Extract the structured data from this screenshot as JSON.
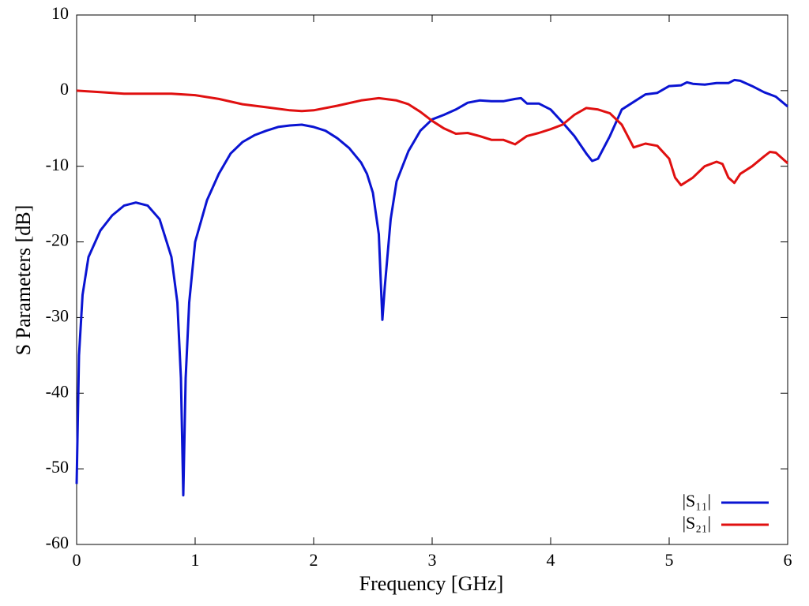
{
  "chart_data": {
    "type": "line",
    "xlabel": "Frequency [GHz]",
    "ylabel": "S Parameters [dB]",
    "xlim": [
      0,
      6
    ],
    "xticks": [
      0,
      1,
      2,
      3,
      4,
      5,
      6
    ],
    "ylim": [
      -60,
      10
    ],
    "yticks": [
      -60,
      -50,
      -40,
      -30,
      -20,
      -10,
      0,
      10
    ],
    "legend": "lower right",
    "series": [
      {
        "name": "|S₁₁|",
        "color": "#0a14d2",
        "x": [
          0,
          0.02,
          0.05,
          0.1,
          0.2,
          0.3,
          0.4,
          0.5,
          0.6,
          0.7,
          0.8,
          0.85,
          0.88,
          0.9,
          0.92,
          0.95,
          1.0,
          1.1,
          1.2,
          1.3,
          1.4,
          1.5,
          1.6,
          1.7,
          1.8,
          1.9,
          2.0,
          2.1,
          2.2,
          2.3,
          2.4,
          2.45,
          2.5,
          2.55,
          2.58,
          2.6,
          2.65,
          2.7,
          2.8,
          2.9,
          3.0,
          3.1,
          3.2,
          3.3,
          3.4,
          3.5,
          3.6,
          3.7,
          3.75,
          3.8,
          3.9,
          4.0,
          4.1,
          4.2,
          4.3,
          4.35,
          4.4,
          4.5,
          4.6,
          4.7,
          4.8,
          4.9,
          5.0,
          5.1,
          5.15,
          5.2,
          5.3,
          5.4,
          5.5,
          5.55,
          5.6,
          5.7,
          5.8,
          5.9,
          6.0
        ],
        "values": [
          -52,
          -35,
          -27,
          -22,
          -18.5,
          -16.5,
          -15.2,
          -14.8,
          -15.2,
          -17,
          -22,
          -28,
          -38,
          -53.5,
          -38,
          -28,
          -20,
          -14.5,
          -11,
          -8.3,
          -6.8,
          -5.9,
          -5.3,
          -4.8,
          -4.6,
          -4.5,
          -4.8,
          -5.3,
          -6.3,
          -7.6,
          -9.5,
          -11,
          -13.5,
          -19,
          -30.3,
          -26,
          -17,
          -12,
          -8,
          -5.3,
          -3.8,
          -3.2,
          -2.5,
          -1.6,
          -1.3,
          -1.4,
          -1.4,
          -1.1,
          -1.0,
          -1.7,
          -1.7,
          -2.5,
          -4.2,
          -6,
          -8.3,
          -9.3,
          -9,
          -6,
          -2.5,
          -1.5,
          -0.5,
          -0.3,
          0.6,
          0.7,
          1.1,
          0.9,
          0.8,
          1.0,
          1.0,
          1.4,
          1.3,
          0.6,
          -0.2,
          -0.8,
          -2.1
        ]
      },
      {
        "name": "|S₂₁|",
        "color": "#e01010",
        "x": [
          0,
          0.2,
          0.4,
          0.6,
          0.8,
          1.0,
          1.2,
          1.4,
          1.6,
          1.8,
          1.9,
          2.0,
          2.2,
          2.4,
          2.55,
          2.7,
          2.8,
          2.9,
          3.0,
          3.1,
          3.2,
          3.3,
          3.4,
          3.5,
          3.6,
          3.7,
          3.8,
          3.9,
          4.0,
          4.1,
          4.2,
          4.3,
          4.4,
          4.5,
          4.6,
          4.7,
          4.8,
          4.9,
          5.0,
          5.05,
          5.1,
          5.2,
          5.3,
          5.4,
          5.45,
          5.5,
          5.55,
          5.6,
          5.7,
          5.8,
          5.85,
          5.9,
          6.0
        ],
        "values": [
          0,
          -0.2,
          -0.4,
          -0.4,
          -0.4,
          -0.6,
          -1.1,
          -1.8,
          -2.2,
          -2.6,
          -2.7,
          -2.6,
          -2.0,
          -1.3,
          -1.0,
          -1.3,
          -1.8,
          -2.8,
          -4.0,
          -5,
          -5.7,
          -5.6,
          -6.0,
          -6.5,
          -6.5,
          -7.1,
          -6,
          -5.6,
          -5.1,
          -4.5,
          -3.2,
          -2.3,
          -2.5,
          -3.0,
          -4.5,
          -7.5,
          -7.0,
          -7.3,
          -9,
          -11.5,
          -12.5,
          -11.5,
          -10,
          -9.4,
          -9.7,
          -11.5,
          -12.2,
          -11,
          -10,
          -8.7,
          -8.1,
          -8.2,
          -9.6
        ]
      }
    ]
  }
}
